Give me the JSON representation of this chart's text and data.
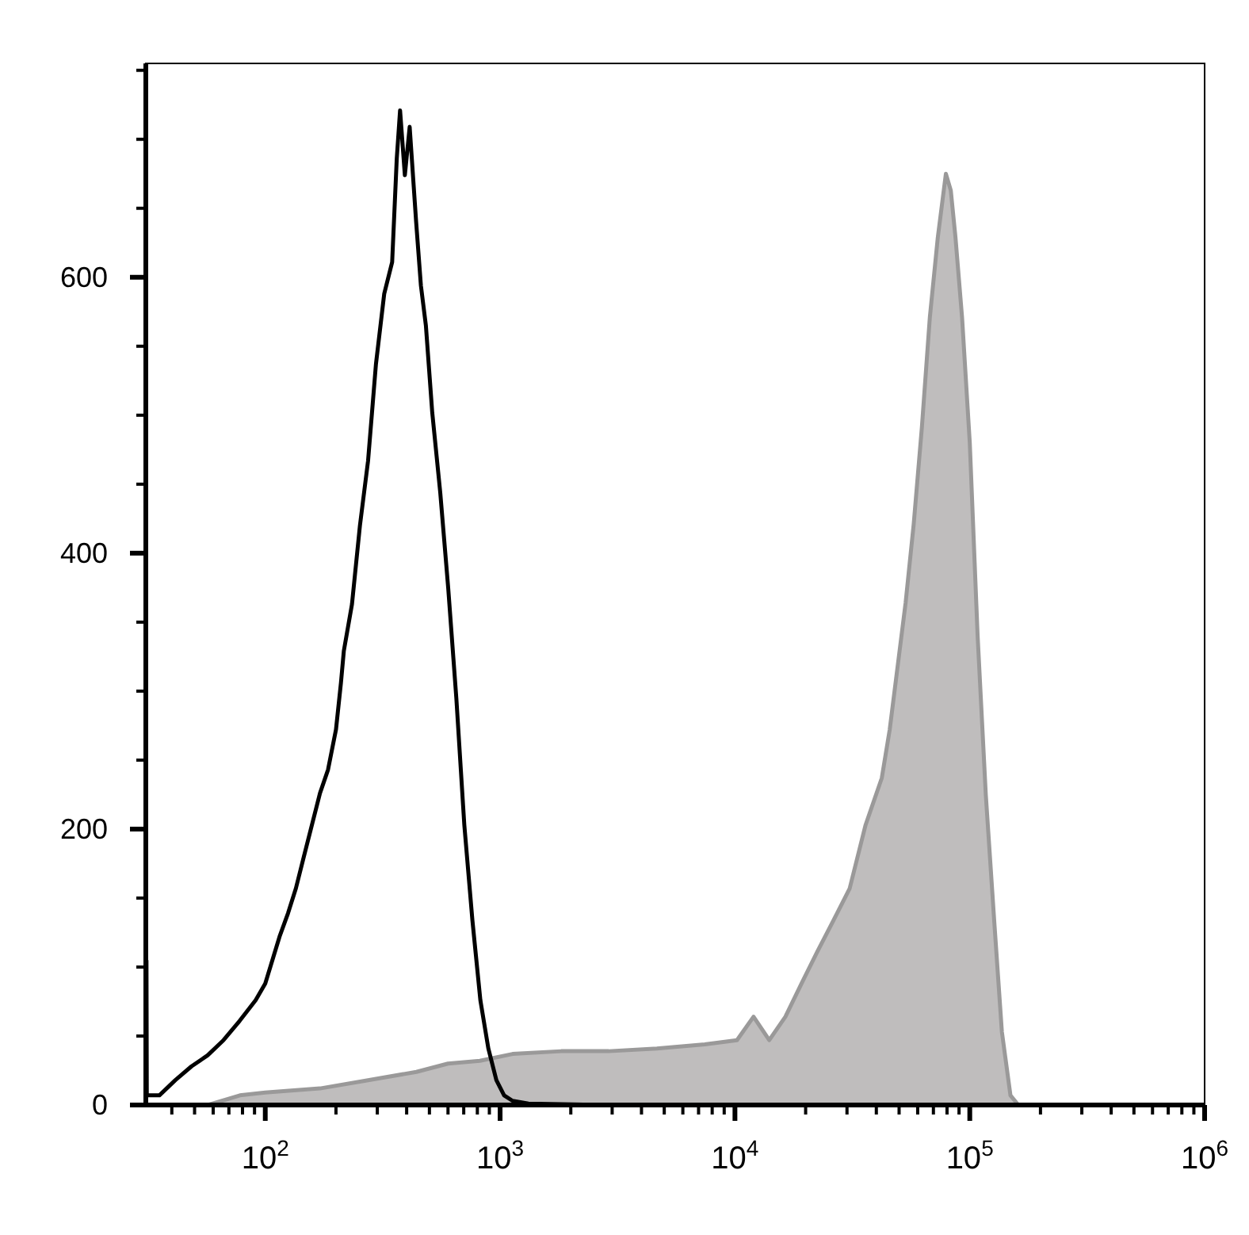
{
  "chart_data": {
    "type": "area",
    "log": "x",
    "grid": false,
    "xlim": [
      31,
      1000000
    ],
    "ylim": [
      0,
      755
    ],
    "xticks": [
      {
        "value": 40,
        "label": null
      },
      {
        "value": 50,
        "label": null
      },
      {
        "value": 60,
        "label": null
      },
      {
        "value": 70,
        "label": null
      },
      {
        "value": 80,
        "label": null
      },
      {
        "value": 90,
        "label": null
      },
      {
        "value": 100,
        "label": "10$^{2}$"
      },
      {
        "value": 200,
        "label": null
      },
      {
        "value": 300,
        "label": null
      },
      {
        "value": 400,
        "label": null
      },
      {
        "value": 500,
        "label": null
      },
      {
        "value": 600,
        "label": null
      },
      {
        "value": 700,
        "label": null
      },
      {
        "value": 800,
        "label": null
      },
      {
        "value": 900,
        "label": null
      },
      {
        "value": 1000,
        "label": "10$^{3}$"
      },
      {
        "value": 2000,
        "label": null
      },
      {
        "value": 3000,
        "label": null
      },
      {
        "value": 4000,
        "label": null
      },
      {
        "value": 5000,
        "label": null
      },
      {
        "value": 6000,
        "label": null
      },
      {
        "value": 7000,
        "label": null
      },
      {
        "value": 8000,
        "label": null
      },
      {
        "value": 9000,
        "label": null
      },
      {
        "value": 10000,
        "label": "10$^{4}$"
      },
      {
        "value": 20000,
        "label": null
      },
      {
        "value": 30000,
        "label": null
      },
      {
        "value": 40000,
        "label": null
      },
      {
        "value": 50000,
        "label": null
      },
      {
        "value": 60000,
        "label": null
      },
      {
        "value": 70000,
        "label": null
      },
      {
        "value": 80000,
        "label": null
      },
      {
        "value": 90000,
        "label": null
      },
      {
        "value": 100000,
        "label": "10$^{5}$"
      },
      {
        "value": 200000,
        "label": null
      },
      {
        "value": 300000,
        "label": null
      },
      {
        "value": 400000,
        "label": null
      },
      {
        "value": 500000,
        "label": null
      },
      {
        "value": 600000,
        "label": null
      },
      {
        "value": 700000,
        "label": null
      },
      {
        "value": 800000,
        "label": null
      },
      {
        "value": 900000,
        "label": null
      },
      {
        "value": 1000000,
        "label": "10$^{6}$"
      }
    ],
    "yticks": [
      0,
      {
        "value": 50,
        "label": null
      },
      {
        "value": 100,
        "label": null
      },
      {
        "value": 150,
        "label": null
      },
      200,
      {
        "value": 250,
        "label": null
      },
      {
        "value": 300,
        "label": null
      },
      {
        "value": 350,
        "label": null
      },
      400,
      {
        "value": 450,
        "label": null
      },
      {
        "value": 500,
        "label": null
      },
      {
        "value": 550,
        "label": null
      },
      600,
      {
        "value": 650,
        "label": null
      },
      {
        "value": 700,
        "label": null
      },
      {
        "value": 750,
        "label": null
      }
    ],
    "series": [
      {
        "color": "#bfbdbd",
        "x": [
          57,
          78,
          100,
          171,
          274,
          440,
          600,
          820,
          1130,
          1820,
          2900,
          4650,
          7440,
          10200,
          12000,
          14000,
          16400,
          19200,
          22400,
          26300,
          30800,
          36000,
          42200,
          45600,
          49300,
          53300,
          57700,
          62500,
          67600,
          73100,
          79100,
          83000,
          86900,
          92700,
          100000,
          108000,
          117000,
          127000,
          137000,
          149000,
          161000,
          174000
        ],
        "values": [
          0,
          7,
          9,
          12,
          18,
          24,
          30,
          32,
          37,
          39,
          39,
          41,
          44,
          47,
          64,
          47,
          64,
          88,
          111,
          134,
          157,
          203,
          237,
          272,
          318,
          364,
          421,
          491,
          571,
          629,
          675,
          663,
          629,
          571,
          480,
          340,
          225,
          134,
          53,
          7,
          0,
          0
        ]
      },
      {
        "type": "line",
        "color": "#000000",
        "x": [
          31.2,
          31.3,
          32.2,
          35.4,
          41.4,
          48.5,
          56.8,
          66.4,
          77.8,
          91,
          100,
          115,
          125,
          135,
          146,
          158,
          171,
          185,
          200,
          210,
          216,
          234,
          253,
          274,
          296,
          321,
          347,
          363,
          375,
          393,
          412,
          439,
          460,
          483,
          514,
          556,
          601,
          651,
          704,
          762,
          824,
          891,
          964,
          1040,
          1130,
          1320,
          2900
        ],
        "values": [
          105,
          7,
          7,
          7,
          18,
          28,
          36,
          47,
          61,
          76,
          88,
          122,
          139,
          157,
          180,
          203,
          226,
          243,
          272,
          306,
          329,
          363,
          420,
          467,
          537,
          588,
          611,
          686,
          721,
          674,
          709,
          640,
          594,
          565,
          502,
          444,
          375,
          295,
          203,
          134,
          76,
          41,
          18,
          7,
          3,
          1,
          0
        ]
      }
    ]
  }
}
